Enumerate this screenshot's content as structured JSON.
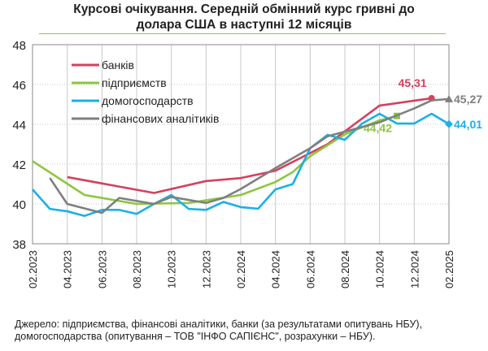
{
  "title_line1": "Курсові очікування. Середній обмінний курс гривні до",
  "title_line2": "долара США в наступні 12 місяців",
  "source_line1": "Джерело: підприємства, фінансові аналітики, банки (за результатами опитувань НБУ),",
  "source_line2": "домогосподарства (опитування – ТОВ \"ІНФО САПІЄНС\", розрахунки – НБУ).",
  "chart_data": {
    "type": "line",
    "title": "Курсові очікування. Середній обмінний курс гривні до долара США в наступні 12 місяців",
    "xlabel": "",
    "ylabel": "",
    "x_unit": "months since 02.2023",
    "xlim": [
      0,
      24
    ],
    "ylim": [
      38,
      48
    ],
    "yticks": [
      38,
      40,
      42,
      44,
      46,
      48
    ],
    "xtick_labels": [
      "02.2023",
      "04.2023",
      "06.2023",
      "08.2023",
      "10.2023",
      "12.2023",
      "02.2024",
      "04.2024",
      "06.2024",
      "08.2024",
      "10.2024",
      "12.2024",
      "02.2025"
    ],
    "legend_position": "top-left",
    "grid": true,
    "series": [
      {
        "name": "банків",
        "color": "#d6405e",
        "marker": "circle",
        "end_label": "45,31",
        "points": [
          [
            2,
            41.35
          ],
          [
            7,
            40.55
          ],
          [
            10,
            41.15
          ],
          [
            12,
            41.3
          ],
          [
            14,
            41.67
          ],
          [
            17,
            43.0
          ],
          [
            20,
            44.94
          ],
          [
            23,
            45.31
          ]
        ]
      },
      {
        "name": "підприємств",
        "color": "#8dc63f",
        "marker": "square",
        "end_label": "44,42",
        "points": [
          [
            0,
            42.15
          ],
          [
            3,
            40.45
          ],
          [
            6,
            40.0
          ],
          [
            9,
            40.05
          ],
          [
            12,
            40.45
          ],
          [
            14,
            41.1
          ],
          [
            15,
            41.6
          ],
          [
            16,
            42.4
          ],
          [
            18,
            43.5
          ],
          [
            20,
            44.2
          ],
          [
            21,
            44.42
          ]
        ]
      },
      {
        "name": "домогосподарств",
        "color": "#1ab0e8",
        "marker": "diamond",
        "end_label": "44,01",
        "points": [
          [
            0,
            40.73
          ],
          [
            1,
            39.75
          ],
          [
            2,
            39.63
          ],
          [
            3,
            39.4
          ],
          [
            4,
            39.7
          ],
          [
            5,
            39.7
          ],
          [
            6,
            39.5
          ],
          [
            7,
            40.0
          ],
          [
            8,
            40.45
          ],
          [
            9,
            39.75
          ],
          [
            10,
            39.7
          ],
          [
            11,
            40.1
          ],
          [
            12,
            39.84
          ],
          [
            13,
            39.76
          ],
          [
            14,
            40.73
          ],
          [
            15,
            41.0
          ],
          [
            16,
            42.8
          ],
          [
            17,
            43.47
          ],
          [
            18,
            43.22
          ],
          [
            19,
            44.04
          ],
          [
            20,
            44.53
          ],
          [
            21,
            44.04
          ],
          [
            22,
            44.04
          ],
          [
            23,
            44.53
          ],
          [
            24,
            44.01
          ]
        ]
      },
      {
        "name": "фінансових аналітиків",
        "color": "#7f7f7f",
        "marker": "triangle",
        "end_label": "45,27",
        "points": [
          [
            1,
            41.3
          ],
          [
            2,
            40.0
          ],
          [
            4,
            39.55
          ],
          [
            5,
            40.3
          ],
          [
            7,
            40.0
          ],
          [
            8,
            40.35
          ],
          [
            10,
            40.05
          ],
          [
            11,
            40.3
          ],
          [
            12,
            40.75
          ],
          [
            14,
            41.8
          ],
          [
            16,
            42.8
          ],
          [
            17,
            43.4
          ],
          [
            20,
            44.1
          ],
          [
            22,
            44.8
          ],
          [
            23,
            45.2
          ],
          [
            24,
            45.27
          ]
        ]
      }
    ]
  }
}
